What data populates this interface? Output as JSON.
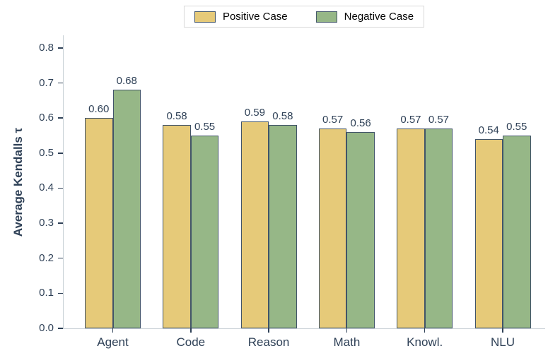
{
  "chart_data": {
    "type": "bar",
    "title": "",
    "xlabel": "",
    "ylabel": "Average Kendalls τ",
    "categories": [
      "Agent",
      "Code",
      "Reason",
      "Math",
      "Knowl.",
      "NLU"
    ],
    "series": [
      {
        "name": "Positive Case",
        "color": "#e6ca79",
        "edge_color": "#415469",
        "values": [
          0.6,
          0.58,
          0.59,
          0.57,
          0.57,
          0.54
        ],
        "labels": [
          "0.60",
          "0.58",
          "0.59",
          "0.57",
          "0.57",
          "0.54"
        ]
      },
      {
        "name": "Negative Case",
        "color": "#96b787",
        "edge_color": "#415469",
        "values": [
          0.68,
          0.55,
          0.58,
          0.56,
          0.57,
          0.55
        ],
        "labels": [
          "0.68",
          "0.55",
          "0.58",
          "0.56",
          "0.57",
          "0.55"
        ]
      }
    ],
    "yticks": [
      "0.0",
      "0.1",
      "0.2",
      "0.3",
      "0.4",
      "0.5",
      "0.6",
      "0.7",
      "0.8"
    ],
    "ylim": [
      0.0,
      0.836
    ],
    "grid": false,
    "legend_position": "top-center"
  },
  "colors": {
    "text": "#2f4157",
    "legend_text": "#000000",
    "spine": "#c9d1d6",
    "positive_fill": "#e6ca79",
    "negative_fill": "#96b787",
    "bar_edge": "#415469"
  }
}
